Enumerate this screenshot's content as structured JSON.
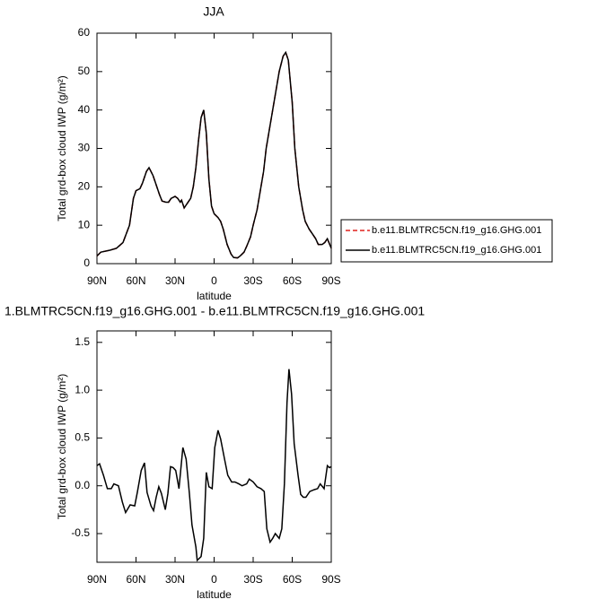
{
  "chart_data": [
    {
      "type": "line",
      "title": "JJA",
      "xlabel": "latitude",
      "ylabel": "Total grd-box cloud IWP (g/m²)",
      "x": [
        90,
        87,
        80,
        75,
        70,
        65,
        62,
        60,
        57,
        55,
        52,
        50,
        47,
        45,
        42,
        40,
        37,
        35,
        33,
        30,
        28,
        26,
        25,
        23,
        20,
        18,
        16,
        14,
        12,
        10,
        8,
        6,
        4,
        2,
        0,
        -3,
        -5,
        -7,
        -10,
        -13,
        -15,
        -18,
        -20,
        -23,
        -25,
        -28,
        -30,
        -33,
        -35,
        -38,
        -40,
        -43,
        -45,
        -48,
        -50,
        -53,
        -55,
        -57,
        -60,
        -62,
        -65,
        -68,
        -70,
        -73,
        -75,
        -78,
        -80,
        -83,
        -85,
        -87,
        -90
      ],
      "series": [
        {
          "name": "b.e11.BLMTRC5CN.f19_g16.GHG.001",
          "color": "#e0201b",
          "linestyle": "dashed",
          "values": [
            2,
            3,
            3.5,
            4,
            5.5,
            10,
            17,
            19,
            19.5,
            21,
            24,
            25,
            23,
            21,
            18,
            16.3,
            16,
            16,
            17,
            17.5,
            17,
            16,
            16.5,
            14.5,
            16,
            17,
            20,
            25,
            32,
            38,
            40,
            34,
            22,
            15,
            13,
            12,
            11,
            9,
            5,
            2.5,
            1.6,
            1.5,
            2,
            3,
            4.5,
            7,
            10,
            14,
            18,
            24,
            30,
            36,
            40,
            46,
            50,
            54,
            55,
            53,
            42,
            30,
            20,
            14,
            11,
            9,
            8,
            6.5,
            5,
            5,
            5.5,
            6.5,
            4
          ]
        },
        {
          "name": "b.e11.BLMTRC5CN.f19_g16.GHG.001",
          "color": "#000000",
          "linestyle": "solid",
          "values": [
            2,
            3,
            3.5,
            4,
            5.5,
            10,
            17,
            19,
            19.5,
            21,
            24,
            25,
            23,
            21,
            18,
            16.3,
            16,
            16,
            17,
            17.5,
            17,
            16,
            16.5,
            14.5,
            16,
            17,
            20,
            25,
            32,
            38,
            40,
            34,
            22,
            15,
            13,
            12,
            11,
            9,
            5,
            2.5,
            1.6,
            1.5,
            2,
            3,
            4.5,
            7,
            10,
            14,
            18,
            24,
            30,
            36,
            40,
            46,
            50,
            54,
            55,
            53,
            42,
            30,
            20,
            14,
            11,
            9,
            8,
            6.5,
            5,
            5,
            5.5,
            6.5,
            4
          ]
        }
      ],
      "xlim": [
        90,
        -90
      ],
      "xticks": [
        {
          "value": 90,
          "label": "90N"
        },
        {
          "value": 60,
          "label": "60N"
        },
        {
          "value": 30,
          "label": "30N"
        },
        0,
        {
          "value": -30,
          "label": "30S"
        },
        {
          "value": -60,
          "label": "60S"
        },
        {
          "value": -90,
          "label": "90S"
        }
      ],
      "ylim": [
        0,
        60
      ],
      "yticks": [
        0,
        10,
        20,
        30,
        40,
        50,
        60
      ],
      "legend": "right"
    },
    {
      "type": "line",
      "title": "1.BLMTRC5CN.f19_g16.GHG.001 - b.e11.BLMTRC5CN.f19_g16.GHG.001",
      "xlabel": "latitude",
      "ylabel": "Total grd-box cloud IWP (g/m²)",
      "x": [
        90,
        88,
        85,
        82,
        79,
        77,
        73.5,
        70.5,
        68,
        64.5,
        61,
        59,
        56,
        53.5,
        51.5,
        48.5,
        46.5,
        44.5,
        42.5,
        40.5,
        37.5,
        35.5,
        33.5,
        31.5,
        29.5,
        27,
        24,
        21.5,
        19,
        17,
        14,
        13,
        10,
        8,
        6,
        4,
        1.5,
        -0.5,
        -3,
        -5,
        -8,
        -10.5,
        -13.5,
        -16,
        -19,
        -21.5,
        -25,
        -27,
        -30,
        -33,
        -36,
        -38.5,
        -40.5,
        -43,
        -45,
        -47,
        -50,
        -52,
        -54,
        -56,
        -57.5,
        -59.5,
        -61.5,
        -64.5,
        -66.5,
        -68.5,
        -70.5,
        -73.5,
        -77,
        -79.5,
        -81.5,
        -84.5,
        -87,
        -88.5,
        -90
      ],
      "values": [
        0.21,
        0.23,
        0.11,
        -0.03,
        -0.03,
        0.02,
        0.0,
        -0.17,
        -0.28,
        -0.2,
        -0.21,
        -0.07,
        0.16,
        0.24,
        -0.07,
        -0.21,
        -0.26,
        -0.12,
        -0.01,
        -0.08,
        -0.25,
        -0.08,
        0.2,
        0.19,
        0.16,
        -0.03,
        0.4,
        0.28,
        -0.08,
        -0.41,
        -0.64,
        -0.78,
        -0.74,
        -0.55,
        0.14,
        -0.01,
        -0.03,
        0.4,
        0.58,
        0.49,
        0.28,
        0.11,
        0.04,
        0.04,
        0.02,
        0.0,
        0.02,
        0.07,
        0.04,
        -0.01,
        -0.03,
        -0.06,
        -0.45,
        -0.59,
        -0.55,
        -0.5,
        -0.55,
        -0.45,
        0.02,
        0.87,
        1.22,
        0.96,
        0.44,
        0.11,
        -0.09,
        -0.12,
        -0.12,
        -0.06,
        -0.04,
        -0.03,
        0.02,
        -0.03,
        0.21,
        0.19,
        0.2
      ],
      "color": "#000000",
      "xlim": [
        90,
        -90
      ],
      "xticks": [
        {
          "value": 90,
          "label": "90N"
        },
        {
          "value": 60,
          "label": "60N"
        },
        {
          "value": 30,
          "label": "30N"
        },
        0,
        {
          "value": -30,
          "label": "30S"
        },
        {
          "value": -60,
          "label": "60S"
        },
        {
          "value": -90,
          "label": "90S"
        }
      ],
      "ylim": [
        -0.8,
        1.62
      ],
      "yticks": [
        -0.5,
        {
          "value": 0,
          "label": "0.0"
        },
        0.5,
        {
          "value": 1,
          "label": "1.0"
        },
        1.5
      ]
    }
  ]
}
